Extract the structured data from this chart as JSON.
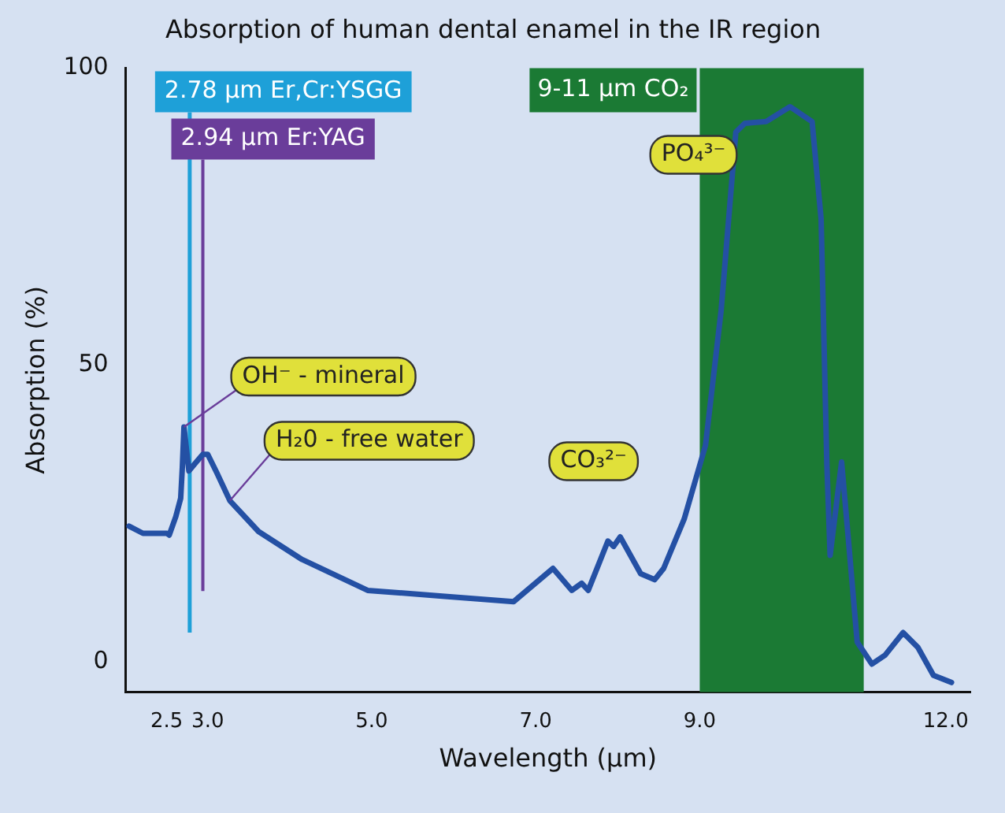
{
  "chart_data": {
    "type": "line",
    "title": "Absorption of human dental enamel in the IR region",
    "xlabel": "Wavelength (µm)",
    "ylabel": "Absorption (%)",
    "xlim": [
      2,
      12.3
    ],
    "xticks": [
      {
        "value": 2.5,
        "label": "2.5"
      },
      {
        "value": 3,
        "label": "3.0"
      },
      {
        "value": 5,
        "label": "5.0"
      },
      {
        "value": 7,
        "label": "7.0"
      },
      {
        "value": 9,
        "label": "9.0"
      },
      {
        "value": 12,
        "label": "12.0"
      }
    ],
    "ylim": [
      -5,
      100
    ],
    "yticks": [
      0,
      50,
      100
    ],
    "grid": false,
    "legend": false,
    "marker": "none",
    "line_style": "solid",
    "series": [
      {
        "color": "#2450a4",
        "x": [
          2.04,
          2.21,
          2.5,
          2.53,
          2.61,
          2.67,
          2.69,
          2.71,
          2.77,
          2.86,
          2.94,
          3.0,
          3.11,
          3.27,
          3.62,
          4.15,
          4.95,
          5.89,
          6.73,
          7.21,
          7.44,
          7.56,
          7.64,
          7.88,
          7.95,
          8.03,
          8.28,
          8.45,
          8.56,
          8.81,
          9.07,
          9.26,
          9.44,
          9.55,
          9.81,
          10.1,
          10.37,
          10.48,
          10.55,
          10.59,
          10.73,
          10.81,
          10.92,
          11.1,
          11.26,
          11.48,
          11.66,
          11.85,
          12.07
        ],
        "values": [
          22.9,
          21.7,
          21.7,
          21.4,
          24.5,
          27.6,
          32.8,
          39.6,
          32.2,
          33.7,
          35,
          35,
          31.9,
          27.2,
          22,
          17.3,
          12.1,
          11.1,
          10.2,
          15.8,
          12.1,
          13.3,
          12.1,
          20.4,
          19.5,
          21.1,
          14.9,
          13.9,
          15.8,
          24.1,
          36.5,
          59.1,
          89.2,
          90.7,
          91,
          93.5,
          91,
          74.6,
          33.4,
          18,
          33.7,
          21.1,
          3.4,
          -0.3,
          1.2,
          5,
          2.5,
          -2.2,
          -3.4
        ]
      }
    ],
    "ref_lines": [
      {
        "axis": "x",
        "value": 2.78,
        "label": "2.78 µm Er,Cr:YSGG",
        "color": "#1ea0d8"
      },
      {
        "axis": "x",
        "value": 2.94,
        "label": "2.94 µm Er:YAG",
        "color": "#6a3d9a"
      }
    ],
    "bands": [
      {
        "axis": "x",
        "from": 9,
        "to": 11,
        "label": "9-11 µm CO₂",
        "color": "#1b7a34"
      }
    ],
    "annotations": [
      {
        "text": "OH⁻ - mineral",
        "x": 2.71,
        "y": 39.6
      },
      {
        "text": "H₂0 - free water",
        "x": 3.27,
        "y": 27.2
      },
      {
        "text": "CO₃²⁻",
        "x": 8.03,
        "y": 21.1
      },
      {
        "text": "PO₄³⁻",
        "x": 9.55,
        "y": 90.7
      }
    ]
  }
}
